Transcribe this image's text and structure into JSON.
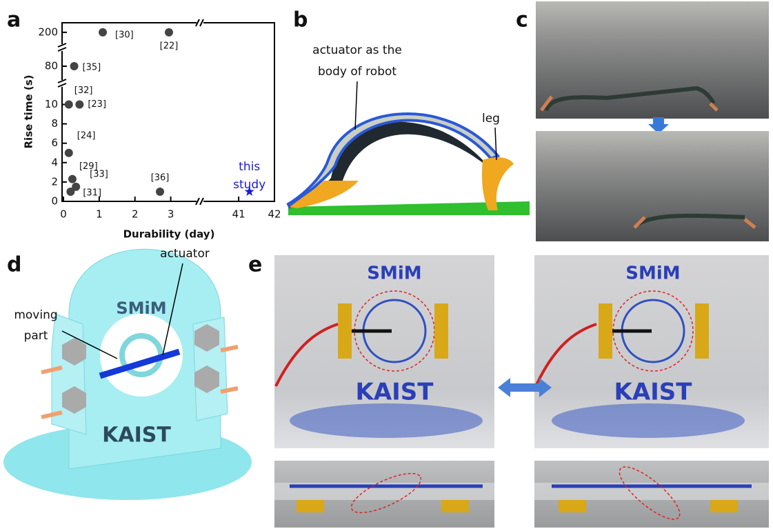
{
  "panel_labels": [
    "a",
    "b",
    "c",
    "d",
    "e"
  ],
  "chart_data": {
    "type": "scatter",
    "xlabel": "Durability (day)",
    "ylabel": "Rise time (s)",
    "x_segments": [
      {
        "xlim": [
          0,
          3.9
        ],
        "xticks": [
          0,
          1,
          2,
          3
        ]
      },
      {
        "xlim": [
          40,
          42
        ],
        "xticks": [
          41,
          42
        ]
      }
    ],
    "y_segments": [
      {
        "ylim": [
          0,
          12.1
        ],
        "yticks": [
          0,
          2,
          4,
          6,
          8,
          10
        ]
      },
      {
        "ylim": [
          74,
          86
        ],
        "yticks": [
          80
        ]
      },
      {
        "ylim": [
          190,
          206
        ],
        "yticks": [
          200
        ]
      }
    ],
    "x": [
      1.1,
      2.95,
      0.3,
      0.15,
      0.45,
      0.15,
      0.25,
      0.35,
      0.2,
      2.7
    ],
    "values": [
      200,
      200,
      80,
      10,
      10,
      5,
      2.3,
      1.5,
      1,
      1
    ],
    "point_labels": [
      "[30]",
      "[22]",
      "[35]",
      "[32]",
      "[23]",
      "[24]",
      "[29]",
      "[33]",
      "[31]",
      "[36]"
    ],
    "color": "#444444",
    "highlight": {
      "x": 41.3,
      "value": 1,
      "label_lines": [
        "this",
        "study"
      ],
      "color": "#1a1ad6"
    }
  },
  "panel_b": {
    "actuator_lines": [
      "actuator as the",
      "body of robot"
    ],
    "leg": "leg"
  },
  "panel_d": {
    "actuator": "actuator",
    "moving_part_lines": [
      "moving",
      "part"
    ],
    "logo_top": "SMiM",
    "logo_bottom": "KAIST"
  },
  "panel_e": {
    "logo_top": "SMiM",
    "logo_bottom": "KAIST"
  }
}
